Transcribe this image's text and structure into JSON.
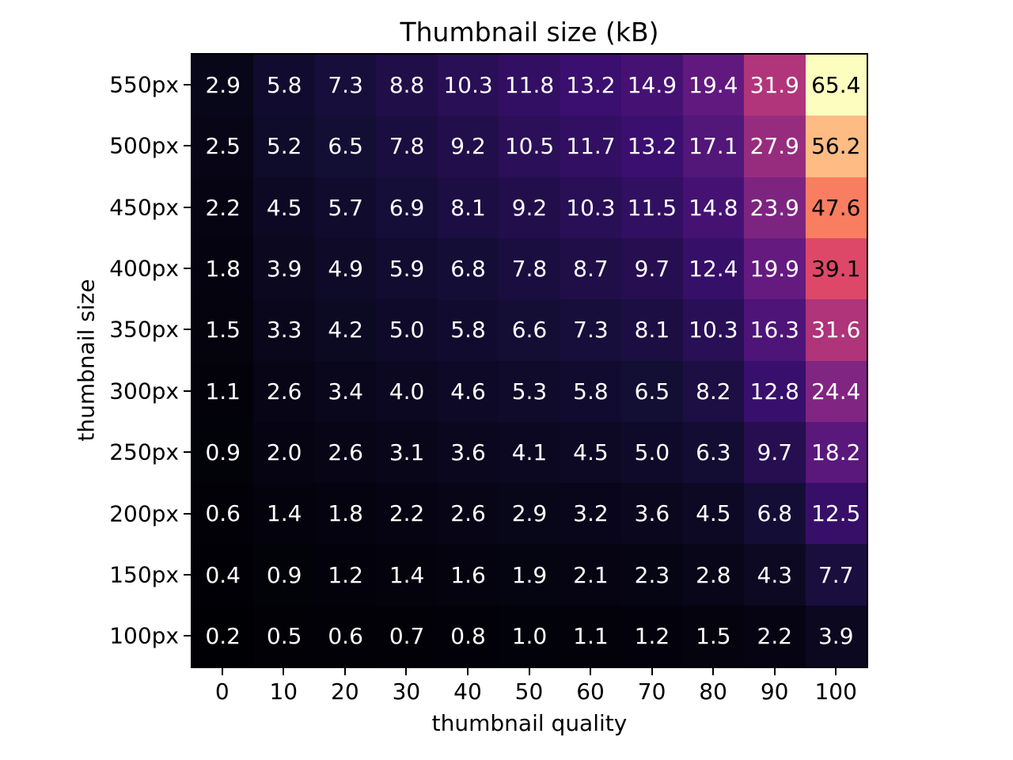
{
  "chart_data": {
    "type": "heatmap",
    "title": "Thumbnail size (kB)",
    "xlabel": "thumbnail quality",
    "ylabel": "thumbnail size",
    "x_tick_labels": [
      "0",
      "10",
      "20",
      "30",
      "40",
      "50",
      "60",
      "70",
      "80",
      "90",
      "100"
    ],
    "y_tick_labels": [
      "550px",
      "500px",
      "450px",
      "400px",
      "350px",
      "300px",
      "250px",
      "200px",
      "150px",
      "100px"
    ],
    "values": [
      [
        2.9,
        5.8,
        7.3,
        8.8,
        10.3,
        11.8,
        13.2,
        14.9,
        19.4,
        31.9,
        65.4
      ],
      [
        2.5,
        5.2,
        6.5,
        7.8,
        9.2,
        10.5,
        11.7,
        13.2,
        17.1,
        27.9,
        56.2
      ],
      [
        2.2,
        4.5,
        5.7,
        6.9,
        8.1,
        9.2,
        10.3,
        11.5,
        14.8,
        23.9,
        47.6
      ],
      [
        1.8,
        3.9,
        4.9,
        5.9,
        6.8,
        7.8,
        8.7,
        9.7,
        12.4,
        19.9,
        39.1
      ],
      [
        1.5,
        3.3,
        4.2,
        5.0,
        5.8,
        6.6,
        7.3,
        8.1,
        10.3,
        16.3,
        31.6
      ],
      [
        1.1,
        2.6,
        3.4,
        4.0,
        4.6,
        5.3,
        5.8,
        6.5,
        8.2,
        12.8,
        24.4
      ],
      [
        0.9,
        2.0,
        2.6,
        3.1,
        3.6,
        4.1,
        4.5,
        5.0,
        6.3,
        9.7,
        18.2
      ],
      [
        0.6,
        1.4,
        1.8,
        2.2,
        2.6,
        2.9,
        3.2,
        3.6,
        4.5,
        6.8,
        12.5
      ],
      [
        0.4,
        0.9,
        1.2,
        1.4,
        1.6,
        1.9,
        2.1,
        2.3,
        2.8,
        4.3,
        7.7
      ],
      [
        0.2,
        0.5,
        0.6,
        0.7,
        0.8,
        1.0,
        1.1,
        1.2,
        1.5,
        2.2,
        3.9
      ]
    ],
    "annotation_decimals": 1,
    "colormap": "magma",
    "colormap_stops": [
      "#000004",
      "#140e36",
      "#3b0f70",
      "#641a80",
      "#8c2981",
      "#b73779",
      "#de4968",
      "#f7705c",
      "#fe9f6d",
      "#fecf92",
      "#fcfdbf"
    ],
    "vmin": 0.2,
    "vmax": 65.4,
    "text_threshold": 0.5,
    "annotation_light_color": "#ffffff",
    "annotation_dark_color": "#000000",
    "axis_color": "#000000",
    "background_color": "#ffffff",
    "legend": "none",
    "grid": "off"
  }
}
